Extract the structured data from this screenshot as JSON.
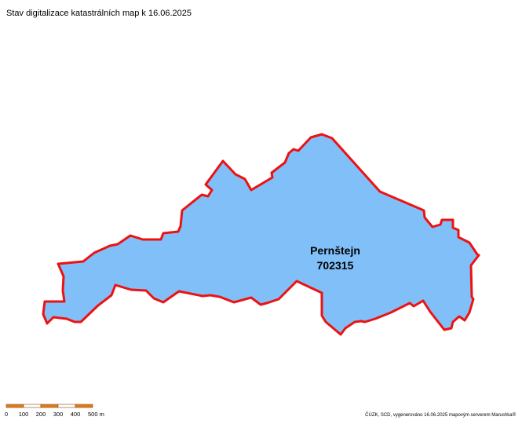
{
  "title": "Stav digitalizace katastrálních map k 16.06.2025",
  "parcel": {
    "name": "Pernštejn",
    "code": "702315"
  },
  "scale_bar": {
    "labels": [
      "0",
      "100",
      "200",
      "300",
      "400",
      "500 m"
    ]
  },
  "credit": "ČÚZK, SCD, vygenerováno 16.06.2025 mapovým serverem Marushka®"
}
